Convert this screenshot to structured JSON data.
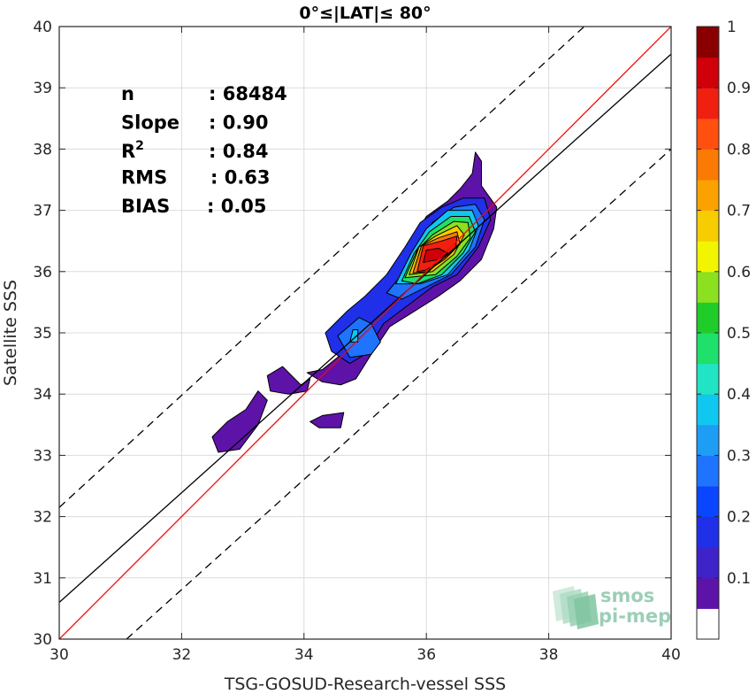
{
  "chart_data": {
    "type": "heatmap",
    "title": "0°≤|LAT|≤ 80°",
    "xlabel": "TSG-GOSUD-Research-vessel SSS",
    "ylabel": "Satellite SSS",
    "xlim": [
      30,
      40
    ],
    "ylim": [
      30,
      40
    ],
    "xticks": [
      "30",
      "32",
      "34",
      "36",
      "38",
      "40"
    ],
    "yticks": [
      "30",
      "31",
      "32",
      "33",
      "34",
      "35",
      "36",
      "37",
      "38",
      "39",
      "40"
    ],
    "grid": true,
    "stats": [
      {
        "label": "n",
        "value": ": 68484"
      },
      {
        "label": "Slope",
        "value": ": 0.90"
      },
      {
        "label": "R",
        "sup": "2",
        "value": ": 0.84"
      },
      {
        "label": "RMS",
        "value": ": 0.63"
      },
      {
        "label": "BIAS",
        "value": ": 0.05"
      }
    ],
    "lines": {
      "one_to_one": {
        "color": "#ff0000",
        "x": [
          30,
          40
        ],
        "y": [
          30,
          40
        ]
      },
      "fit": {
        "color": "#000000",
        "x": [
          30,
          40
        ],
        "y": [
          30.6,
          39.55
        ]
      },
      "upper_bound": {
        "style": "dashed",
        "x": [
          30,
          40
        ],
        "y": [
          32.15,
          41.3
        ]
      },
      "lower_bound": {
        "style": "dashed",
        "x": [
          31.1,
          40
        ],
        "y": [
          30,
          38.0
        ]
      }
    },
    "density_contours": [
      {
        "level": 0.05,
        "points": [
          [
            32.6,
            33.05
          ],
          [
            32.5,
            33.3
          ],
          [
            32.75,
            33.55
          ],
          [
            33.05,
            33.75
          ],
          [
            33.25,
            34.05
          ],
          [
            33.4,
            33.9
          ],
          [
            33.25,
            33.5
          ],
          [
            32.95,
            33.1
          ]
        ]
      },
      {
        "level": 0.05,
        "points": [
          [
            33.4,
            34.3
          ],
          [
            33.65,
            34.45
          ],
          [
            33.95,
            34.15
          ],
          [
            34.1,
            34.25
          ],
          [
            34.05,
            34.05
          ],
          [
            33.75,
            34.0
          ],
          [
            33.45,
            34.05
          ]
        ]
      },
      {
        "level": 0.05,
        "points": [
          [
            34.05,
            34.35
          ],
          [
            34.3,
            34.4
          ],
          [
            34.55,
            34.6
          ],
          [
            34.75,
            34.85
          ],
          [
            34.9,
            35.2
          ],
          [
            35.15,
            35.5
          ],
          [
            35.45,
            35.9
          ],
          [
            35.7,
            36.35
          ],
          [
            35.85,
            36.65
          ],
          [
            36.0,
            36.9
          ],
          [
            36.35,
            37.15
          ],
          [
            36.55,
            37.35
          ],
          [
            36.75,
            37.6
          ],
          [
            36.8,
            37.95
          ],
          [
            36.9,
            37.8
          ],
          [
            36.9,
            37.4
          ],
          [
            37.15,
            37.05
          ],
          [
            37.1,
            36.7
          ],
          [
            36.9,
            36.2
          ],
          [
            36.55,
            35.85
          ],
          [
            36.2,
            35.6
          ],
          [
            35.8,
            35.35
          ],
          [
            35.4,
            35.1
          ],
          [
            35.1,
            34.65
          ],
          [
            34.85,
            34.25
          ],
          [
            34.6,
            34.15
          ],
          [
            34.3,
            34.2
          ]
        ]
      },
      {
        "level": 0.05,
        "points": [
          [
            34.1,
            33.55
          ],
          [
            34.3,
            33.65
          ],
          [
            34.65,
            33.7
          ],
          [
            34.6,
            33.45
          ],
          [
            34.25,
            33.45
          ]
        ]
      },
      {
        "level": 0.15,
        "points": [
          [
            34.35,
            35.0
          ],
          [
            34.7,
            35.35
          ],
          [
            35.0,
            35.6
          ],
          [
            35.35,
            35.95
          ],
          [
            35.65,
            36.4
          ],
          [
            35.9,
            36.8
          ],
          [
            36.25,
            37.05
          ],
          [
            36.6,
            37.2
          ],
          [
            36.95,
            37.2
          ],
          [
            37.05,
            36.85
          ],
          [
            36.85,
            36.4
          ],
          [
            36.5,
            35.95
          ],
          [
            36.1,
            35.75
          ],
          [
            35.7,
            35.45
          ],
          [
            35.3,
            35.15
          ],
          [
            35.0,
            34.65
          ],
          [
            34.75,
            34.5
          ],
          [
            34.45,
            34.7
          ]
        ]
      },
      {
        "level": 0.25,
        "points": [
          [
            34.55,
            34.95
          ],
          [
            34.9,
            35.25
          ],
          [
            35.1,
            35.15
          ],
          [
            35.25,
            34.85
          ],
          [
            35.1,
            34.65
          ],
          [
            34.75,
            34.6
          ]
        ]
      },
      {
        "level": 0.25,
        "points": [
          [
            35.35,
            35.65
          ],
          [
            35.6,
            35.95
          ],
          [
            35.85,
            36.45
          ],
          [
            36.1,
            36.8
          ],
          [
            36.45,
            37.05
          ],
          [
            36.8,
            37.1
          ],
          [
            36.95,
            36.85
          ],
          [
            36.8,
            36.4
          ],
          [
            36.4,
            35.95
          ],
          [
            36.0,
            35.75
          ],
          [
            35.6,
            35.55
          ]
        ]
      },
      {
        "level": 0.35,
        "points": [
          [
            35.5,
            35.8
          ],
          [
            35.75,
            36.3
          ],
          [
            36.0,
            36.7
          ],
          [
            36.35,
            37.0
          ],
          [
            36.75,
            37.0
          ],
          [
            36.85,
            36.75
          ],
          [
            36.7,
            36.35
          ],
          [
            36.35,
            35.95
          ],
          [
            35.9,
            35.8
          ]
        ]
      },
      {
        "level": 0.45,
        "points": [
          [
            35.6,
            35.85
          ],
          [
            35.8,
            36.3
          ],
          [
            36.05,
            36.65
          ],
          [
            36.4,
            36.9
          ],
          [
            36.7,
            36.9
          ],
          [
            36.8,
            36.65
          ],
          [
            36.6,
            36.3
          ],
          [
            36.25,
            35.95
          ],
          [
            35.85,
            35.8
          ]
        ]
      },
      {
        "level": 0.55,
        "points": [
          [
            35.65,
            35.9
          ],
          [
            35.85,
            36.35
          ],
          [
            36.1,
            36.6
          ],
          [
            36.45,
            36.82
          ],
          [
            36.68,
            36.8
          ],
          [
            36.72,
            36.55
          ],
          [
            36.5,
            36.25
          ],
          [
            36.15,
            35.95
          ]
        ]
      },
      {
        "level": 0.65,
        "points": [
          [
            35.72,
            35.95
          ],
          [
            35.88,
            36.4
          ],
          [
            36.15,
            36.58
          ],
          [
            36.5,
            36.75
          ],
          [
            36.62,
            36.6
          ],
          [
            36.45,
            36.28
          ],
          [
            36.1,
            36.0
          ]
        ]
      },
      {
        "level": 0.75,
        "points": [
          [
            35.78,
            35.98
          ],
          [
            35.92,
            36.42
          ],
          [
            36.2,
            36.55
          ],
          [
            36.5,
            36.65
          ],
          [
            36.55,
            36.45
          ],
          [
            36.3,
            36.2
          ],
          [
            36.0,
            36.0
          ]
        ]
      },
      {
        "level": 0.85,
        "points": [
          [
            35.85,
            36.0
          ],
          [
            35.95,
            36.42
          ],
          [
            36.25,
            36.5
          ],
          [
            36.5,
            36.58
          ],
          [
            36.48,
            36.38
          ],
          [
            36.2,
            36.15
          ],
          [
            35.98,
            36.02
          ]
        ]
      },
      {
        "level": 0.92,
        "points": [
          [
            35.95,
            36.15
          ],
          [
            36.0,
            36.35
          ],
          [
            36.2,
            36.38
          ],
          [
            36.35,
            36.3
          ],
          [
            36.2,
            36.2
          ]
        ]
      },
      {
        "level": 0.35,
        "points": [
          [
            34.75,
            34.85
          ],
          [
            34.8,
            35.05
          ],
          [
            34.88,
            35.05
          ],
          [
            34.88,
            34.85
          ]
        ]
      }
    ],
    "colorbar": {
      "range": [
        0,
        1
      ],
      "ticks": [
        "0.1",
        "0.2",
        "0.3",
        "0.4",
        "0.5",
        "0.6",
        "0.7",
        "0.8",
        "0.9",
        "1"
      ],
      "colors": [
        "#ffffff",
        "#5e13a8",
        "#3e23c8",
        "#2030e8",
        "#0a46ff",
        "#1e74ff",
        "#1e9df5",
        "#10c7f0",
        "#20e4c4",
        "#1ee06a",
        "#20cc28",
        "#8be020",
        "#f2f500",
        "#f7cc00",
        "#fca200",
        "#fb7a05",
        "#ff5010",
        "#f02010",
        "#d0000a",
        "#8a0000"
      ]
    },
    "logo": {
      "line1": "smos",
      "line2": "pi-mep"
    }
  }
}
